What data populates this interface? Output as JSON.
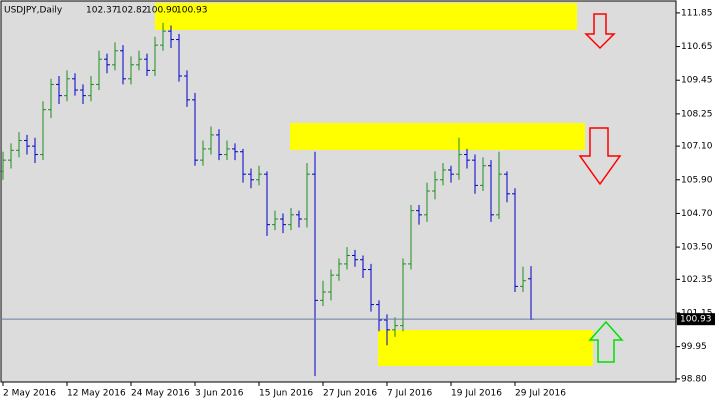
{
  "chart_data": {
    "type": "ohlc",
    "title": "USDJPY,Daily",
    "header_values": [
      {
        "value": 102.37,
        "label": "102.37"
      },
      {
        "value": 102.82,
        "label": "102.82"
      },
      {
        "value": 100.9,
        "label": "100.90"
      },
      {
        "value": 100.93,
        "label": "100.93"
      }
    ],
    "up_color": "#1f8c1f",
    "down_color": "#0000c8",
    "categories": [
      "2 May 2016",
      null,
      null,
      null,
      null,
      null,
      null,
      null,
      "12 May 2016",
      null,
      null,
      null,
      null,
      null,
      null,
      null,
      "24 May 2016",
      null,
      null,
      null,
      null,
      null,
      null,
      null,
      "3 Jun 2016",
      null,
      null,
      null,
      null,
      null,
      null,
      null,
      "15 Jun 2016",
      null,
      null,
      null,
      null,
      null,
      null,
      null,
      "27 Jun 2016",
      null,
      null,
      null,
      null,
      null,
      null,
      null,
      "7 Jul 2016",
      null,
      null,
      null,
      null,
      null,
      null,
      null,
      "19 Jul 2016",
      null,
      null,
      null,
      null,
      null,
      null,
      null,
      "29 Jul 2016",
      null,
      null
    ],
    "series": [
      {
        "name": "USDJPY",
        "ohlc": [
          [
            106.2,
            106.9,
            105.9,
            106.6
          ],
          [
            106.6,
            107.2,
            106.3,
            106.95
          ],
          [
            106.95,
            107.6,
            106.7,
            107.3
          ],
          [
            107.3,
            107.5,
            106.8,
            107.1
          ],
          [
            107.1,
            107.4,
            106.5,
            106.8
          ],
          [
            106.8,
            108.7,
            106.6,
            108.4
          ],
          [
            108.4,
            109.5,
            108.1,
            109.3
          ],
          [
            109.3,
            109.6,
            108.6,
            108.9
          ],
          [
            108.9,
            109.8,
            108.7,
            109.5
          ],
          [
            109.5,
            109.7,
            108.9,
            109.1
          ],
          [
            109.1,
            109.3,
            108.6,
            108.9
          ],
          [
            108.9,
            109.6,
            108.7,
            109.3
          ],
          [
            109.3,
            110.5,
            109.1,
            110.2
          ],
          [
            110.2,
            110.4,
            109.7,
            110.0
          ],
          [
            110.0,
            110.8,
            109.8,
            110.5
          ],
          [
            110.5,
            110.7,
            109.3,
            109.5
          ],
          [
            109.5,
            110.3,
            109.3,
            110.0
          ],
          [
            110.0,
            110.5,
            109.8,
            110.2
          ],
          [
            110.2,
            110.4,
            109.6,
            109.8
          ],
          [
            109.8,
            111.0,
            109.6,
            110.7
          ],
          [
            110.7,
            111.5,
            110.5,
            111.2
          ],
          [
            111.2,
            111.4,
            110.6,
            110.9
          ],
          [
            110.9,
            111.1,
            109.4,
            109.6
          ],
          [
            109.6,
            109.8,
            108.5,
            108.75
          ],
          [
            108.75,
            109.0,
            106.4,
            106.6
          ],
          [
            106.6,
            107.3,
            106.4,
            107.0
          ],
          [
            107.0,
            107.8,
            106.8,
            107.5
          ],
          [
            107.5,
            107.7,
            106.6,
            106.8
          ],
          [
            106.8,
            107.3,
            106.6,
            107.0
          ],
          [
            107.0,
            107.2,
            106.6,
            106.9
          ],
          [
            106.9,
            107.0,
            105.8,
            106.1
          ],
          [
            106.1,
            106.3,
            105.6,
            105.9
          ],
          [
            105.9,
            106.4,
            105.7,
            106.1
          ],
          [
            106.1,
            106.2,
            103.9,
            104.3
          ],
          [
            104.3,
            104.8,
            104.1,
            104.5
          ],
          [
            104.5,
            104.7,
            104.0,
            104.3
          ],
          [
            104.3,
            104.9,
            104.1,
            104.65
          ],
          [
            104.65,
            104.8,
            104.2,
            104.5
          ],
          [
            104.5,
            106.5,
            104.2,
            106.1
          ],
          [
            106.1,
            106.9,
            98.9,
            101.6
          ],
          [
            101.6,
            102.3,
            101.4,
            101.9
          ],
          [
            101.9,
            102.7,
            101.6,
            102.5
          ],
          [
            102.5,
            103.1,
            102.3,
            102.9
          ],
          [
            102.9,
            103.5,
            102.7,
            103.2
          ],
          [
            103.2,
            103.4,
            102.8,
            103.05
          ],
          [
            103.05,
            103.2,
            102.4,
            102.7
          ],
          [
            102.7,
            102.9,
            101.2,
            101.45
          ],
          [
            101.45,
            101.6,
            100.5,
            100.9
          ],
          [
            100.9,
            101.1,
            100.0,
            100.55
          ],
          [
            100.55,
            101.0,
            100.3,
            100.7
          ],
          [
            100.7,
            103.1,
            100.5,
            102.9
          ],
          [
            102.9,
            105.0,
            102.7,
            104.8
          ],
          [
            104.8,
            105.0,
            104.3,
            104.65
          ],
          [
            104.65,
            105.8,
            104.4,
            105.5
          ],
          [
            105.5,
            106.2,
            105.2,
            105.9
          ],
          [
            105.9,
            106.5,
            105.7,
            106.25
          ],
          [
            106.25,
            106.4,
            105.8,
            106.1
          ],
          [
            106.1,
            107.4,
            105.9,
            106.8
          ],
          [
            106.8,
            107.0,
            106.3,
            106.6
          ],
          [
            106.6,
            106.8,
            105.4,
            105.7
          ],
          [
            105.7,
            106.7,
            105.5,
            106.4
          ],
          [
            106.4,
            106.6,
            104.4,
            104.65
          ],
          [
            104.65,
            106.9,
            104.5,
            106.1
          ],
          [
            106.1,
            106.2,
            105.1,
            105.4
          ],
          [
            105.4,
            105.6,
            101.9,
            102.1
          ],
          [
            102.1,
            102.8,
            101.9,
            102.3
          ],
          [
            102.37,
            102.82,
            100.9,
            100.93
          ]
        ]
      }
    ],
    "last_price": 100.93,
    "ylim": [
      98.69,
      112.31
    ],
    "yticks": [
      111.85,
      110.65,
      109.45,
      108.25,
      {
        "value": 107.1,
        "label": "107.10"
      },
      {
        "value": 105.9,
        "label": "105.90"
      },
      {
        "value": 104.7,
        "label": "104.70"
      },
      {
        "value": 103.5,
        "label": "103.50"
      },
      102.35,
      101.15,
      99.95,
      {
        "value": 98.8,
        "label": "98.80"
      }
    ],
    "grid": false
  }
}
